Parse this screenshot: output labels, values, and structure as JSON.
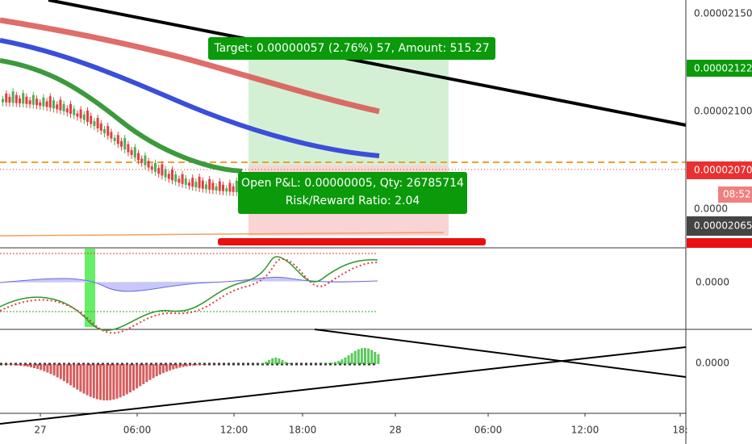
{
  "price_axis": {
    "ticks": [
      "0.00002150",
      "0.00002100"
    ],
    "indicator_ticks": [
      "0.0000",
      "0.0000"
    ],
    "volume_tick": "0.0000"
  },
  "price_tags": {
    "target": "0.00002122",
    "current": "0.00002070",
    "countdown": "08:52",
    "last": "0.00002065"
  },
  "time_axis": {
    "labels": [
      "27",
      "06:00",
      "12:00",
      "18:00",
      "28",
      "06:00",
      "12:00",
      "18:"
    ]
  },
  "position": {
    "target_label": "Target: 0.00000057 (2.76%) 57, Amount: 515.27",
    "pnl_label": [
      "Open P&L: 0.00000005, Qty: 26785714",
      "Risk/Reward Ratio: 2.04"
    ]
  }
}
